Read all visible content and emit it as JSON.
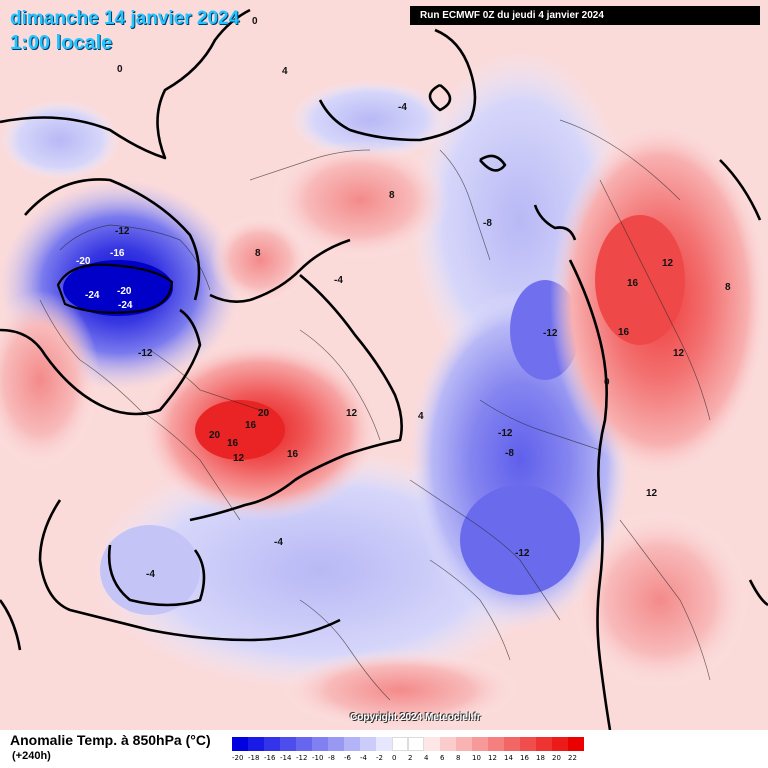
{
  "header": {
    "date_line": "dimanche 14 janvier 2024",
    "time_line": "1:00 locale",
    "run_info": "Run ECMWF 0Z du jeudi 4 janvier 2024"
  },
  "footer": {
    "copyright": "Copyright 2024 Meteociel.fr",
    "legend_title": "Anomalie Temp. à 850hPa (°C)",
    "lead_time": "(+240h)"
  },
  "scale": {
    "ticks": [
      "-20",
      "-18",
      "-16",
      "-14",
      "-12",
      "-10",
      "-8",
      "-6",
      "-4",
      "-2",
      "0",
      "2",
      "4",
      "6",
      "8",
      "10",
      "12",
      "14",
      "16",
      "18",
      "20",
      "22"
    ],
    "colors": [
      "#0000e0",
      "#1a1ae6",
      "#3333ea",
      "#4d4dee",
      "#6666f0",
      "#8080f2",
      "#9999f4",
      "#b3b3f7",
      "#ccccfa",
      "#e6e6fd",
      "#ffffff",
      "#ffffff",
      "#fde6e6",
      "#fbcccc",
      "#f9b3b3",
      "#f79999",
      "#f58080",
      "#f36666",
      "#f14d4d",
      "#ef3333",
      "#ed1a1a",
      "#eb0000"
    ]
  },
  "map_labels": [
    {
      "text": "-24",
      "kind": "cold"
    },
    {
      "text": "-20",
      "kind": "cold"
    },
    {
      "text": "-20",
      "kind": "cold"
    },
    {
      "text": "-24",
      "kind": "cold"
    },
    {
      "text": "-16",
      "kind": "cold"
    },
    {
      "text": "-12",
      "kind": "cold"
    },
    {
      "text": "-12",
      "kind": "cold"
    },
    {
      "text": "-12",
      "kind": "cold"
    },
    {
      "text": "-12",
      "kind": "cold"
    },
    {
      "text": "-12",
      "kind": "cold"
    },
    {
      "text": "-8",
      "kind": "cold"
    },
    {
      "text": "-8",
      "kind": "cold"
    },
    {
      "text": "-4",
      "kind": "cold"
    },
    {
      "text": "-4",
      "kind": "cold"
    },
    {
      "text": "-4",
      "kind": "cold"
    },
    {
      "text": "-4",
      "kind": "cold"
    },
    {
      "text": "20",
      "kind": "warm"
    },
    {
      "text": "20",
      "kind": "warm"
    },
    {
      "text": "16",
      "kind": "warm"
    },
    {
      "text": "16",
      "kind": "warm"
    },
    {
      "text": "16",
      "kind": "warm"
    },
    {
      "text": "16",
      "kind": "warm"
    },
    {
      "text": "16",
      "kind": "warm"
    },
    {
      "text": "12",
      "kind": "warm"
    },
    {
      "text": "12",
      "kind": "warm"
    },
    {
      "text": "12",
      "kind": "warm"
    },
    {
      "text": "12",
      "kind": "warm"
    },
    {
      "text": "12",
      "kind": "warm"
    },
    {
      "text": "8",
      "kind": "warm"
    },
    {
      "text": "8",
      "kind": "warm"
    },
    {
      "text": "8",
      "kind": "warm"
    },
    {
      "text": "4",
      "kind": "warm"
    },
    {
      "text": "4",
      "kind": "warm"
    },
    {
      "text": "0",
      "kind": "zero"
    },
    {
      "text": "0",
      "kind": "zero"
    },
    {
      "text": "0",
      "kind": "zero"
    }
  ]
}
